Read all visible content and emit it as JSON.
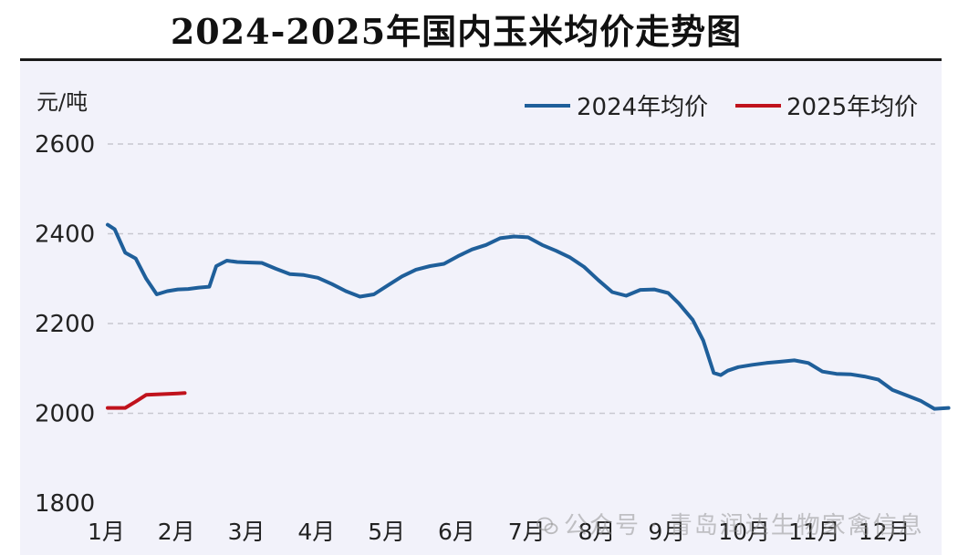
{
  "chart_data": {
    "type": "line",
    "title": "2024-2025年国内玉米均价走势图",
    "ylabel": "元/吨",
    "xlabel": "",
    "ylim": [
      1800,
      2600
    ],
    "yticks": [
      1800,
      2000,
      2200,
      2400,
      2600
    ],
    "x_ticks": [
      "1月",
      "2月",
      "3月",
      "4月",
      "5月",
      "6月",
      "7月",
      "8月",
      "9月",
      "10月",
      "11月",
      "12月"
    ],
    "grid": "horizontal-dashed",
    "legend_position": "top-right",
    "series": [
      {
        "name": "2024年均价",
        "color": "#1f5f9a",
        "x_month": [
          1.0,
          1.1,
          1.25,
          1.4,
          1.55,
          1.7,
          1.85,
          2.0,
          2.15,
          2.3,
          2.45,
          2.55,
          2.7,
          2.85,
          3.0,
          3.2,
          3.4,
          3.6,
          3.8,
          4.0,
          4.2,
          4.4,
          4.6,
          4.8,
          5.0,
          5.2,
          5.4,
          5.6,
          5.8,
          6.0,
          6.2,
          6.4,
          6.6,
          6.8,
          7.0,
          7.2,
          7.4,
          7.6,
          7.8,
          8.0,
          8.2,
          8.4,
          8.6,
          8.8,
          9.0,
          9.15,
          9.35,
          9.5,
          9.65,
          9.75,
          9.85,
          10.0,
          10.2,
          10.4,
          10.6,
          10.8,
          11.0,
          11.2,
          11.4,
          11.6,
          11.8,
          12.0,
          12.2,
          12.4,
          12.6,
          12.8,
          13.0
        ],
        "values": [
          2420,
          2410,
          2358,
          2345,
          2300,
          2265,
          2272,
          2276,
          2277,
          2280,
          2282,
          2328,
          2340,
          2337,
          2336,
          2335,
          2322,
          2310,
          2308,
          2302,
          2288,
          2272,
          2260,
          2265,
          2285,
          2305,
          2320,
          2328,
          2333,
          2350,
          2365,
          2375,
          2390,
          2394,
          2392,
          2375,
          2362,
          2347,
          2326,
          2297,
          2270,
          2262,
          2275,
          2276,
          2268,
          2245,
          2208,
          2162,
          2090,
          2085,
          2095,
          2103,
          2108,
          2112,
          2115,
          2118,
          2112,
          2093,
          2088,
          2087,
          2082,
          2075,
          2052,
          2040,
          2028,
          2010,
          2012
        ]
      },
      {
        "name": "2025年均价",
        "color": "#c0121c",
        "x_month": [
          1.0,
          1.1,
          1.25,
          1.4,
          1.55,
          1.7,
          1.85,
          2.0,
          2.1
        ],
        "values": [
          2012,
          2012,
          2012,
          2026,
          2041,
          2042,
          2043,
          2044,
          2045
        ]
      }
    ]
  },
  "watermark": "公众号 · 青岛润达生物家禽信息"
}
